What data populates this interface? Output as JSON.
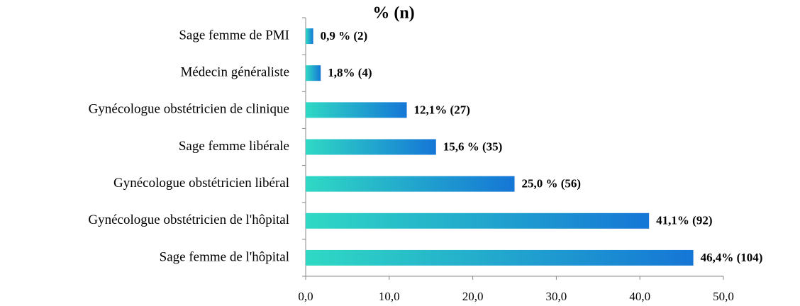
{
  "chart_data": {
    "type": "bar",
    "orientation": "horizontal",
    "title": "% (n)",
    "categories": [
      "Sage femme de PMI",
      "Médecin généraliste",
      "Gynécologue obstétricien de clinique",
      "Sage femme libérale",
      "Gynécologue obstétricien libéral",
      "Gynécologue obstétricien de l'hôpital",
      "Sage femme de l'hôpital"
    ],
    "values": [
      0.9,
      1.8,
      12.1,
      15.6,
      25.0,
      41.1,
      46.4
    ],
    "value_labels": [
      "0,9 % (2)",
      "1,8% (4)",
      "12,1% (27)",
      "15,6 % (35)",
      "25,0 % (56)",
      "41,1% (92)",
      "46,4% (104)"
    ],
    "color": "#1576d6",
    "xlim": [
      0,
      50
    ],
    "xticks": [
      {
        "value": 0,
        "label": "0,0"
      },
      {
        "value": 10,
        "label": "10,0"
      },
      {
        "value": 20,
        "label": "20,0"
      },
      {
        "value": 30,
        "label": "30,0"
      },
      {
        "value": 40,
        "label": "40,0"
      },
      {
        "value": 50,
        "label": "50,0"
      }
    ],
    "grid": false
  }
}
